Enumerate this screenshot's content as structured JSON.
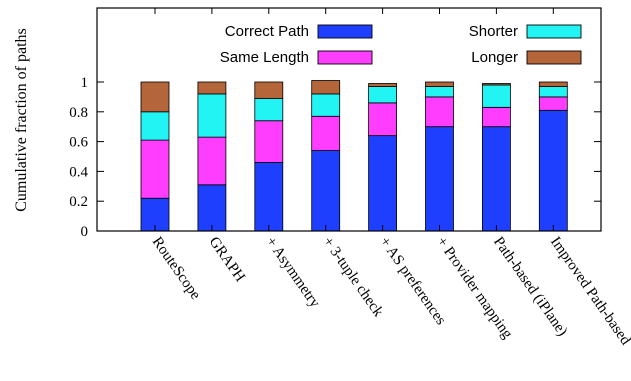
{
  "chart_data": {
    "type": "bar",
    "stacked": true,
    "categories": [
      "RouteScope",
      "GRAPH",
      "+ Asymmetry",
      "+ 3-tuple check",
      "+ AS preferences",
      "+ Provider mapping",
      "Path-based (iPlane)",
      "Improved Path-based"
    ],
    "series": [
      {
        "name": "Correct Path",
        "color": "#1f3fff",
        "values": [
          0.22,
          0.31,
          0.46,
          0.54,
          0.64,
          0.7,
          0.7,
          0.81
        ]
      },
      {
        "name": "Same Length",
        "color": "#ff3dff",
        "values": [
          0.39,
          0.32,
          0.28,
          0.23,
          0.22,
          0.2,
          0.13,
          0.09
        ]
      },
      {
        "name": "Shorter",
        "color": "#22f4f4",
        "values": [
          0.19,
          0.29,
          0.15,
          0.15,
          0.11,
          0.07,
          0.15,
          0.07
        ]
      },
      {
        "name": "Longer",
        "color": "#b5653a",
        "values": [
          0.2,
          0.08,
          0.11,
          0.09,
          0.02,
          0.03,
          0.01,
          0.03
        ]
      }
    ],
    "ylabel": "Cumulative fraction of paths",
    "xlabel": "",
    "ylim": [
      0,
      1
    ],
    "yticks": [
      "0",
      "0.2",
      "0.4",
      "0.6",
      "0.8",
      "1"
    ],
    "legend_position": "top",
    "grid": false
  }
}
